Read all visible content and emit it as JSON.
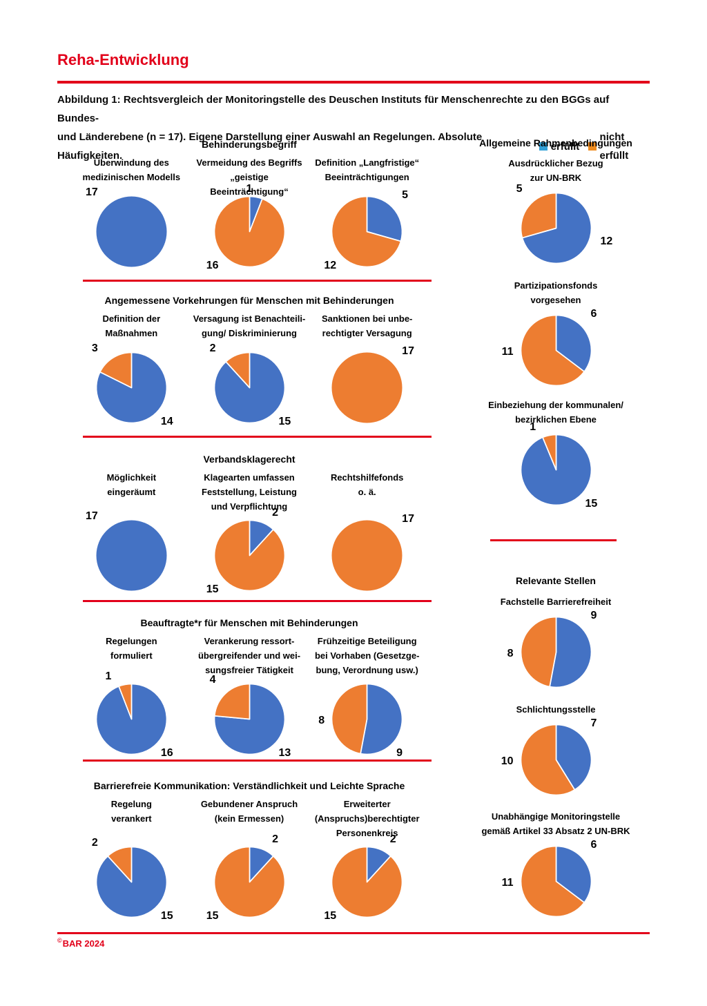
{
  "page": {
    "title": "Reha-Entwicklung",
    "caption_line1": "Abbildung 1: Rechtsvergleich der Monitoringstelle des Deuschen Instituts für Menschenrechte zu den BGGs auf Bundes-",
    "caption_line2": "und Länderebene (n = 17). Eigene Darstellung einer Auswahl an Regelungen. Absolute Häufigkeiten.",
    "legend": [
      {
        "label": "erfüllt",
        "color": "#32a0d7"
      },
      {
        "label": "nicht erfüllt",
        "color": "#f08c1e"
      }
    ],
    "footer_symbol": "©",
    "footer_text": "BAR 2024"
  },
  "colors": {
    "erfuellt": "#4472c4",
    "nicht_erfuellt": "#ed7d31",
    "accent_red": "#e2001a"
  },
  "chart_data": {
    "type": "pie",
    "n_total": 17,
    "legend": [
      "erfüllt",
      "nicht erfüllt"
    ],
    "left_groups": [
      {
        "header": "Behinderungsbegriff",
        "charts": [
          {
            "label_lines": [
              "Überwindung des",
              "medizinischen Modells"
            ],
            "segments": [
              {
                "key": "erfuellt",
                "value": 17,
                "pos": "top-left"
              }
            ]
          },
          {
            "label_lines": [
              "Vermeidung des Begriffs",
              "„geistige Beeinträchtigung“"
            ],
            "segments": [
              {
                "key": "erfuellt",
                "value": 1,
                "pos": "top"
              },
              {
                "key": "nicht_erfuellt",
                "value": 16,
                "pos": "bottom-left"
              }
            ]
          },
          {
            "label_lines": [
              "Definition „Langfristige“",
              "Beeinträchtigungen"
            ],
            "segments": [
              {
                "key": "erfuellt",
                "value": 5,
                "pos": "top-right"
              },
              {
                "key": "nicht_erfuellt",
                "value": 12,
                "pos": "bottom-left"
              }
            ]
          }
        ]
      },
      {
        "header": "Angemessene Vorkehrungen für Menschen mit Behinderungen",
        "charts": [
          {
            "label_lines": [
              "Definition der",
              "Maßnahmen"
            ],
            "segments": [
              {
                "key": "erfuellt",
                "value": 14,
                "pos": "bottom-right"
              },
              {
                "key": "nicht_erfuellt",
                "value": 3,
                "pos": "top-left"
              }
            ]
          },
          {
            "label_lines": [
              "Versagung ist Benachteili-",
              "gung/ Diskriminierung"
            ],
            "segments": [
              {
                "key": "erfuellt",
                "value": 15,
                "pos": "bottom-right"
              },
              {
                "key": "nicht_erfuellt",
                "value": 2,
                "pos": "top-left"
              }
            ]
          },
          {
            "label_lines": [
              "Sanktionen bei unbe-",
              "rechtigter Versagung"
            ],
            "segments": [
              {
                "key": "nicht_erfuellt",
                "value": 17,
                "pos": "top-right"
              }
            ]
          }
        ]
      },
      {
        "header": "Verbandsklagerecht",
        "charts": [
          {
            "label_lines": [
              "Möglichkeit",
              "eingeräumt"
            ],
            "segments": [
              {
                "key": "erfuellt",
                "value": 17,
                "pos": "top-left"
              }
            ]
          },
          {
            "label_lines": [
              "Klagearten umfassen",
              "Feststellung, Leistung",
              "und Verpflichtung"
            ],
            "segments": [
              {
                "key": "erfuellt",
                "value": 2,
                "pos": "above-right"
              },
              {
                "key": "nicht_erfuellt",
                "value": 15,
                "pos": "bottom-left"
              }
            ]
          },
          {
            "label_lines": [
              "Rechtshilfefonds",
              "o. ä."
            ],
            "segments": [
              {
                "key": "nicht_erfuellt",
                "value": 17,
                "pos": "top-right"
              }
            ]
          }
        ]
      },
      {
        "header": "Beauftragte*r für Menschen mit Behinderungen",
        "charts": [
          {
            "label_lines": [
              "Regelungen",
              "formuliert"
            ],
            "segments": [
              {
                "key": "erfuellt",
                "value": 16,
                "pos": "bottom-right"
              },
              {
                "key": "nicht_erfuellt",
                "value": 1,
                "pos": "above-left"
              }
            ]
          },
          {
            "label_lines": [
              "Verankerung ressort-",
              "übergreifender und wei-",
              "sungsfreier Tätigkeit"
            ],
            "segments": [
              {
                "key": "erfuellt",
                "value": 13,
                "pos": "bottom-right"
              },
              {
                "key": "nicht_erfuellt",
                "value": 4,
                "pos": "top-left"
              }
            ]
          },
          {
            "label_lines": [
              "Frühzeitige Beteiligung",
              "bei Vorhaben (Gesetzge-",
              "bung, Verordnung usw.)"
            ],
            "segments": [
              {
                "key": "erfuellt",
                "value": 9,
                "pos": "bottom-right"
              },
              {
                "key": "nicht_erfuellt",
                "value": 8,
                "pos": "left"
              }
            ]
          }
        ]
      },
      {
        "header": "Barrierefreie Kommunikation: Verständlichkeit und Leichte Sprache",
        "charts": [
          {
            "label_lines": [
              "Regelung",
              "verankert"
            ],
            "segments": [
              {
                "key": "erfuellt",
                "value": 15,
                "pos": "bottom-right"
              },
              {
                "key": "nicht_erfuellt",
                "value": 2,
                "pos": "top-left"
              }
            ]
          },
          {
            "label_lines": [
              "Gebundener Anspruch",
              "(kein Ermessen)"
            ],
            "segments": [
              {
                "key": "erfuellt",
                "value": 2,
                "pos": "above-right"
              },
              {
                "key": "nicht_erfuellt",
                "value": 15,
                "pos": "bottom-left"
              }
            ]
          },
          {
            "label_lines": [
              "Erweiterter",
              "(Anspruchs)berechtigter",
              "Personenkreis"
            ],
            "segments": [
              {
                "key": "erfuellt",
                "value": 2,
                "pos": "above-right"
              },
              {
                "key": "nicht_erfuellt",
                "value": 15,
                "pos": "bottom-left"
              }
            ]
          }
        ]
      }
    ],
    "right_sections": [
      {
        "header": "Allgemeine Rahmenbedingungen",
        "charts": [
          {
            "label_lines": [
              "Ausdrücklicher Bezug",
              "zur UN-BRK"
            ],
            "segments": [
              {
                "key": "erfuellt",
                "value": 12,
                "pos": "right"
              },
              {
                "key": "nicht_erfuellt",
                "value": 5,
                "pos": "top-left"
              }
            ]
          },
          {
            "label_lines": [
              "Partizipationsfonds",
              "vorgesehen"
            ],
            "segments": [
              {
                "key": "erfuellt",
                "value": 6,
                "pos": "top-right"
              },
              {
                "key": "nicht_erfuellt",
                "value": 11,
                "pos": "left"
              }
            ]
          },
          {
            "label_lines": [
              "Einbeziehung der kommunalen/",
              "bezirklichen Ebene"
            ],
            "segments": [
              {
                "key": "erfuellt",
                "value": 15,
                "pos": "bottom-right"
              },
              {
                "key": "nicht_erfuellt",
                "value": 1,
                "pos": "above-left"
              }
            ]
          }
        ]
      },
      {
        "header": "Relevante Stellen",
        "charts": [
          {
            "label_lines": [
              "Fachstelle Barrierefreiheit"
            ],
            "segments": [
              {
                "key": "erfuellt",
                "value": 9,
                "pos": "top-right"
              },
              {
                "key": "nicht_erfuellt",
                "value": 8,
                "pos": "left"
              }
            ]
          },
          {
            "label_lines": [
              "Schlichtungsstelle"
            ],
            "segments": [
              {
                "key": "erfuellt",
                "value": 7,
                "pos": "top-right"
              },
              {
                "key": "nicht_erfuellt",
                "value": 10,
                "pos": "left"
              }
            ]
          },
          {
            "label_lines": [
              "Unabhängige Monitoringstelle",
              "gemäß Artikel 33 Absatz 2 UN-BRK"
            ],
            "segments": [
              {
                "key": "erfuellt",
                "value": 6,
                "pos": "top-right"
              },
              {
                "key": "nicht_erfuellt",
                "value": 11,
                "pos": "left"
              }
            ]
          }
        ]
      }
    ]
  }
}
